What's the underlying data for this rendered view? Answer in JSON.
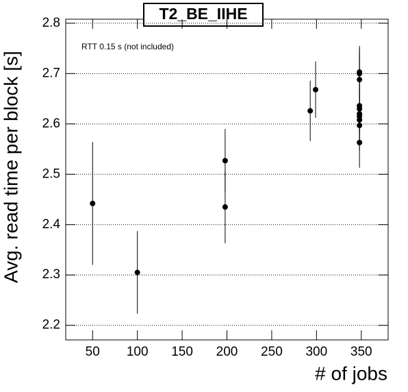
{
  "chart_data": {
    "type": "scatter",
    "title": "T2_BE_IIHE",
    "annotation": "RTT 0.15 s (not included)",
    "x_label": "# of jobs",
    "y_label": "Avg. read time per block [s]",
    "x": [
      50,
      100,
      198,
      198,
      293,
      299,
      348,
      348,
      348,
      348,
      348,
      348,
      348,
      348,
      348,
      348
    ],
    "y": [
      2.442,
      2.305,
      2.527,
      2.435,
      2.626,
      2.668,
      2.703,
      2.7,
      2.688,
      2.636,
      2.63,
      2.62,
      2.615,
      2.608,
      2.597,
      2.563
    ],
    "errors": [
      0.122,
      0.082,
      0.063,
      0.072,
      0.06,
      0.056,
      0.052,
      0.05,
      0.05,
      0.05,
      0.05,
      0.05,
      0.05,
      0.05,
      0.05,
      0.05
    ],
    "color": "#000000",
    "xlim": [
      20,
      380
    ],
    "ylim": [
      2.171,
      2.808
    ],
    "xticks": [
      50,
      100,
      150,
      200,
      250,
      300,
      350
    ],
    "yticks": [
      2.2,
      2.3,
      2.4,
      2.5,
      2.6,
      2.7,
      2.8
    ],
    "grid": true
  }
}
